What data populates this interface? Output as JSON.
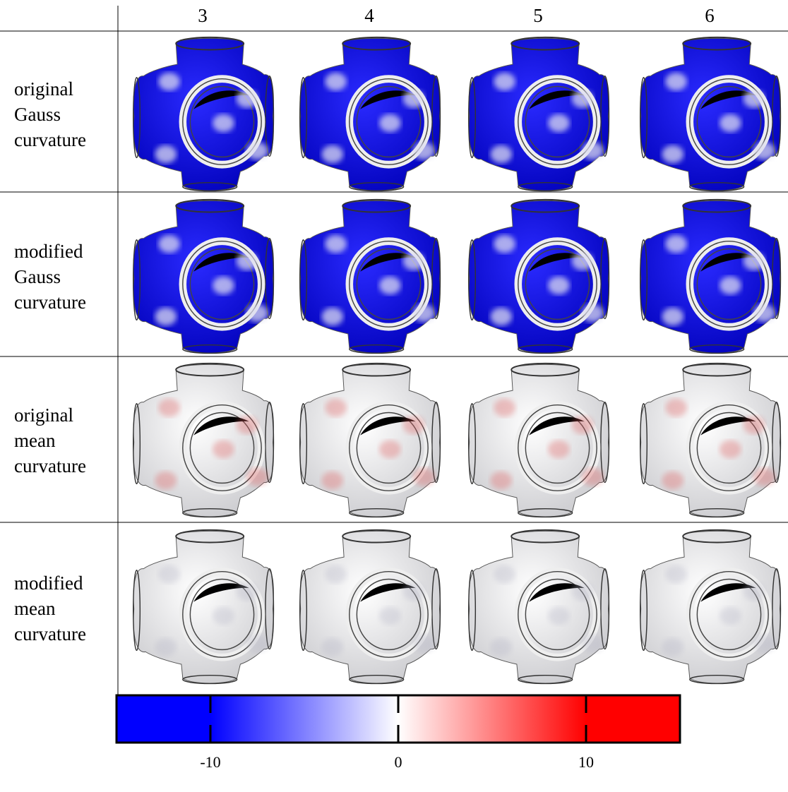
{
  "table": {
    "columns": [
      3,
      4,
      5,
      6
    ],
    "rows": [
      [
        "original",
        "Gauss",
        "curvature"
      ],
      [
        "modified",
        "Gauss",
        "curvature"
      ],
      [
        "original",
        "mean",
        "curvature"
      ],
      [
        "modified",
        "mean",
        "curvature"
      ]
    ]
  },
  "colorbar": {
    "lim": [
      -15,
      15
    ],
    "ticks": [
      -10,
      0,
      10
    ],
    "colors": [
      "#0000ff",
      "#ffffff",
      "#ff0000"
    ]
  }
}
